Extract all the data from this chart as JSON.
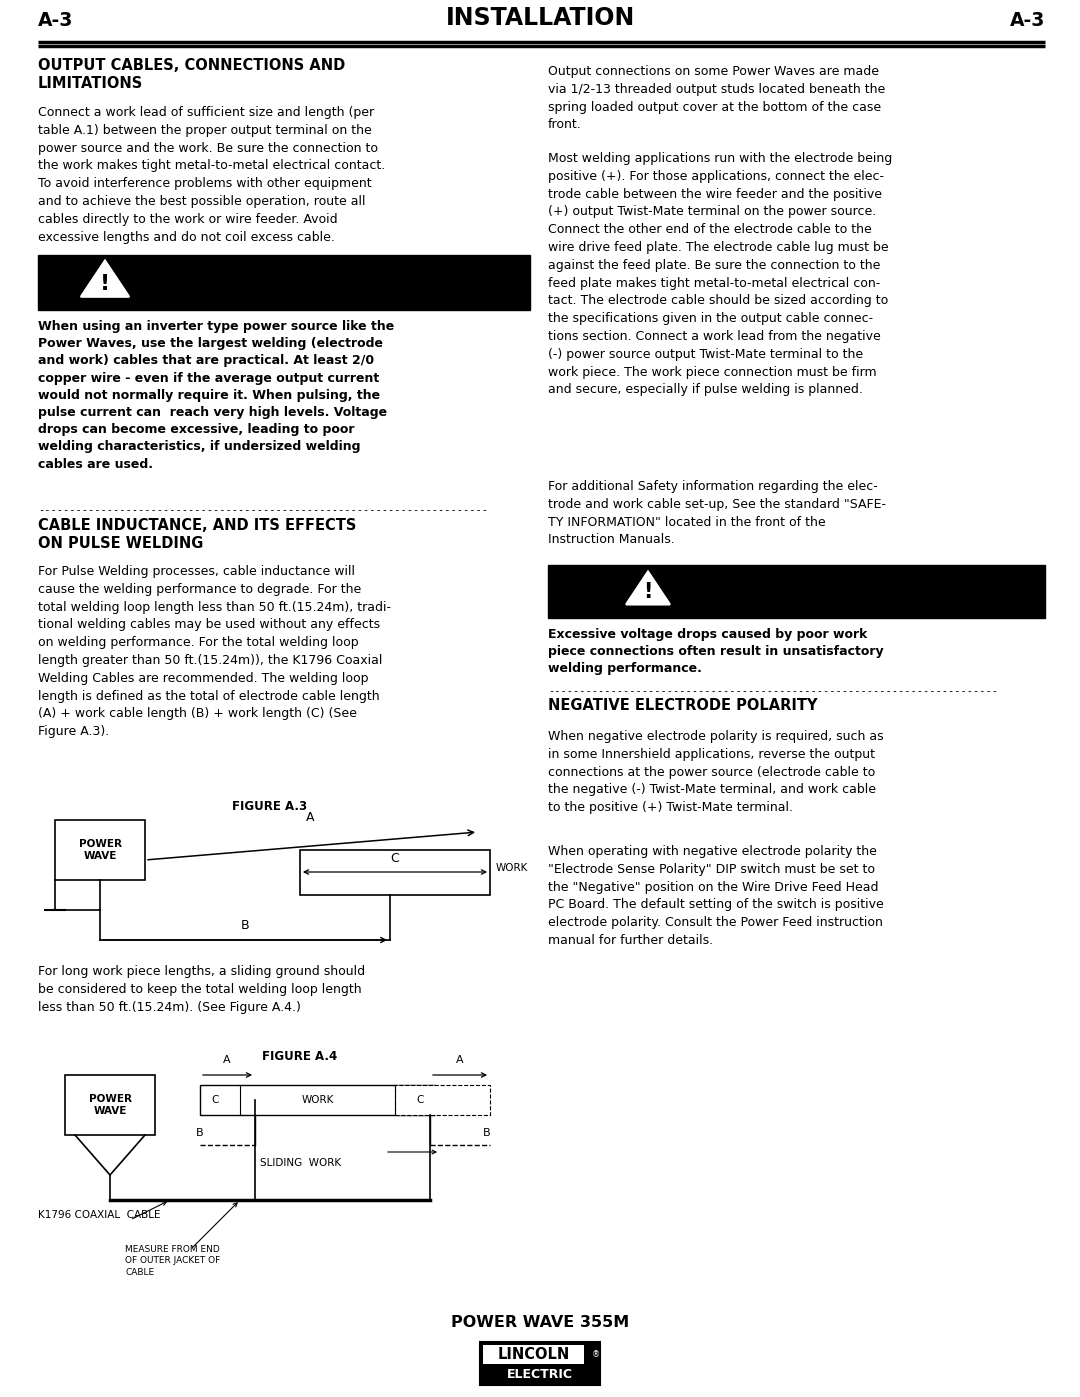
{
  "page_width": 10.8,
  "page_height": 13.97,
  "bg_color": "#ffffff",
  "header_left": "A-3",
  "header_center": "INSTALLATION",
  "header_right": "A-3",
  "section1_title": "OUTPUT CABLES, CONNECTIONS AND\nLIMITATIONS",
  "section1_body_left": "Connect a work lead of sufficient size and length (per\ntable A.1) between the proper output terminal on the\npower source and the work. Be sure the connection to\nthe work makes tight metal-to-metal electrical contact.\nTo avoid interference problems with other equipment\nand to achieve the best possible operation, route all\ncables directly to the work or wire feeder. Avoid\nexcessive lengths and do not coil excess cable.",
  "warning1_text": "When using an inverter type power source like the\nPower Waves, use the largest welding (electrode\nand work) cables that are practical. At least 2/0\ncopper wire - even if the average output current\nwould not normally require it. When pulsing, the\npulse current can  reach very high levels. Voltage\ndrops can become excessive, leading to poor\nwelding characteristics, if undersized welding\ncables are used.",
  "divider": "------------------------------------------------------------------------",
  "section2_title": "CABLE INDUCTANCE, AND ITS EFFECTS\nON PULSE WELDING",
  "section2_body": "For Pulse Welding processes, cable inductance will\ncause the welding performance to degrade. For the\ntotal welding loop length less than 50 ft.(15.24m), tradi-\ntional welding cables may be used without any effects\non welding performance. For the total welding loop\nlength greater than 50 ft.(15.24m)), the K1796 Coaxial\nWelding Cables are recommended. The welding loop\nlength is defined as the total of electrode cable length\n(A) + work cable length (B) + work length (C) (See\nFigure A.3).",
  "figure_a3_label": "FIGURE A.3",
  "figure_a4_label": "FIGURE A.4",
  "section2_after": "For long work piece lengths, a sliding ground should\nbe considered to keep the total welding loop length\nless than 50 ft.(15.24m). (See Figure A.4.)",
  "right_para1": "Output connections on some Power Waves are made\nvia 1/2-13 threaded output studs located beneath the\nspring loaded output cover at the bottom of the case\nfront.",
  "right_para2": "Most welding applications run with the electrode being\npositive (+). For those applications, connect the elec-\ntrode cable between the wire feeder and the positive\n(+) output Twist-Mate terminal on the power source.\nConnect the other end of the electrode cable to the\nwire drive feed plate. The electrode cable lug must be\nagainst the feed plate. Be sure the connection to the\nfeed plate makes tight metal-to-metal electrical con-\ntact. The electrode cable should be sized according to\nthe specifications given in the output cable connec-\ntions section. Connect a work lead from the negative\n(-) power source output Twist-Mate terminal to the\nwork piece. The work piece connection must be firm\nand secure, especially if pulse welding is planned.",
  "right_para3": "For additional Safety information regarding the elec-\ntrode and work cable set-up, See the standard \"SAFE-\nTY INFORMATION\" located in the front of the\nInstruction Manuals.",
  "warning2_text": "Excessive voltage drops caused by poor work\npiece connections often result in unsatisfactory\nwelding performance.",
  "divider2": "------------------------------------------------------------------------",
  "section3_title": "NEGATIVE ELECTRODE POLARITY",
  "section3_body1": "When negative electrode polarity is required, such as\nin some Innershield applications, reverse the output\nconnections at the power source (electrode cable to\nthe negative (-) Twist-Mate terminal, and work cable\nto the positive (+) Twist-Mate terminal.",
  "section3_body2": "When operating with negative electrode polarity the\n\"Electrode Sense Polarity\" DIP switch must be set to\nthe \"Negative\" position on the Wire Drive Feed Head\nPC Board. The default setting of the switch is positive\nelectrode polarity. Consult the Power Feed instruction\nmanual for further details.",
  "footer_model": "POWER WAVE 355M",
  "lincoln_top": "LINCOLN",
  "lincoln_reg": "®",
  "lincoln_bot": "ELECTRIC"
}
